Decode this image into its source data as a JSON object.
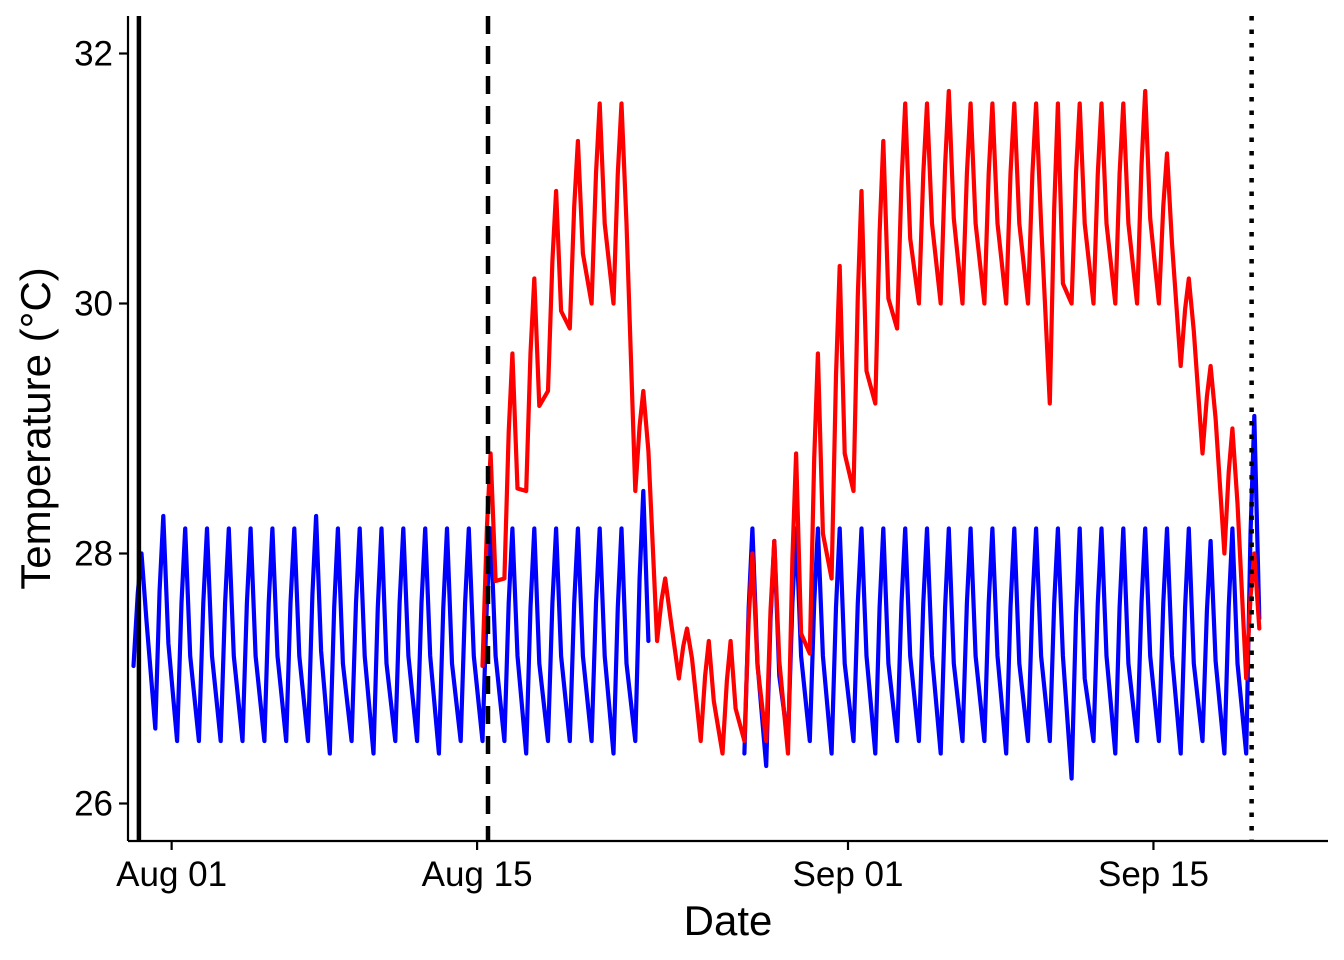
{
  "chart_data": {
    "type": "line",
    "title": "",
    "xlabel": "Date",
    "ylabel": "Temperature (°C)",
    "x_type": "datetime",
    "xlim": [
      "2021-07-30",
      "2021-09-23"
    ],
    "ylim": [
      25.7,
      32.3
    ],
    "x_ticks": [
      {
        "date": "2021-08-01",
        "label": "Aug 01"
      },
      {
        "date": "2021-08-15",
        "label": "Aug 15"
      },
      {
        "date": "2021-09-01",
        "label": "Sep 01"
      },
      {
        "date": "2021-09-15",
        "label": "Sep 15"
      }
    ],
    "y_ticks": [
      26,
      28,
      30,
      32
    ],
    "grid": false,
    "legend": "none",
    "vlines": [
      {
        "date": "2021-07-30 12:00",
        "style": "solid",
        "color": "#000000"
      },
      {
        "date": "2021-08-15 12:00",
        "style": "dashed",
        "color": "#000000"
      },
      {
        "date": "2021-09-19 12:00",
        "style": "dotted",
        "color": "#000000"
      }
    ],
    "series": [
      {
        "color": "#0000ff",
        "x": [
          "2021-07-30",
          "2021-07-31",
          "2021-08-01",
          "2021-08-02",
          "2021-08-03",
          "2021-08-04",
          "2021-08-05",
          "2021-08-06",
          "2021-08-07",
          "2021-08-08",
          "2021-08-09",
          "2021-08-10",
          "2021-08-11",
          "2021-08-12",
          "2021-08-13",
          "2021-08-14",
          "2021-08-15",
          "2021-08-16",
          "2021-08-17",
          "2021-08-18",
          "2021-08-19",
          "2021-08-20",
          "2021-08-21",
          "2021-08-22",
          "2021-08-27",
          "2021-08-28",
          "2021-08-29",
          "2021-08-30",
          "2021-08-31",
          "2021-09-01",
          "2021-09-02",
          "2021-09-03",
          "2021-09-04",
          "2021-09-05",
          "2021-09-06",
          "2021-09-07",
          "2021-09-08",
          "2021-09-09",
          "2021-09-10",
          "2021-09-11",
          "2021-09-12",
          "2021-09-13",
          "2021-09-14",
          "2021-09-15",
          "2021-09-16",
          "2021-09-17",
          "2021-09-18",
          "2021-09-19"
        ],
        "daily_min": [
          27.1,
          26.6,
          26.5,
          26.5,
          26.5,
          26.5,
          26.5,
          26.5,
          26.5,
          26.4,
          26.5,
          26.4,
          26.5,
          26.5,
          26.4,
          26.5,
          26.5,
          26.5,
          26.4,
          26.5,
          26.5,
          26.5,
          26.4,
          26.5,
          26.4,
          26.3,
          26.5,
          26.5,
          26.4,
          26.5,
          26.4,
          26.5,
          26.5,
          26.4,
          26.5,
          26.5,
          26.4,
          26.5,
          26.5,
          26.2,
          26.5,
          26.4,
          26.5,
          26.5,
          26.4,
          26.5,
          26.4,
          26.4
        ],
        "daily_max": [
          28.0,
          28.3,
          28.2,
          28.2,
          28.2,
          28.2,
          28.2,
          28.2,
          28.3,
          28.2,
          28.2,
          28.2,
          28.2,
          28.2,
          28.2,
          28.2,
          28.2,
          28.2,
          28.2,
          28.2,
          28.2,
          28.2,
          28.2,
          28.5,
          28.2,
          28.1,
          28.2,
          28.2,
          28.2,
          28.2,
          28.2,
          28.2,
          28.2,
          28.2,
          28.2,
          28.2,
          28.2,
          28.2,
          28.2,
          28.2,
          28.2,
          28.2,
          28.2,
          28.2,
          28.2,
          28.1,
          28.2,
          29.1
        ]
      },
      {
        "color": "#ff0000",
        "x": [
          "2021-08-15",
          "2021-08-16",
          "2021-08-17",
          "2021-08-18",
          "2021-08-19",
          "2021-08-20",
          "2021-08-21",
          "2021-08-22",
          "2021-08-23",
          "2021-08-24",
          "2021-08-25",
          "2021-08-26",
          "2021-08-27",
          "2021-08-28",
          "2021-08-29",
          "2021-08-30",
          "2021-08-31",
          "2021-09-01",
          "2021-09-02",
          "2021-09-03",
          "2021-09-04",
          "2021-09-05",
          "2021-09-06",
          "2021-09-07",
          "2021-09-08",
          "2021-09-09",
          "2021-09-10",
          "2021-09-11",
          "2021-09-12",
          "2021-09-13",
          "2021-09-14",
          "2021-09-15",
          "2021-09-16",
          "2021-09-17",
          "2021-09-18",
          "2021-09-19"
        ],
        "daily_min": [
          27.1,
          27.8,
          28.5,
          29.3,
          29.8,
          30.0,
          30.0,
          28.5,
          27.3,
          27.0,
          26.5,
          26.4,
          26.5,
          26.5,
          26.4,
          27.2,
          27.8,
          28.5,
          29.2,
          29.8,
          30.0,
          30.0,
          30.0,
          30.0,
          30.0,
          30.0,
          29.2,
          30.0,
          30.0,
          30.0,
          30.0,
          30.0,
          29.5,
          28.8,
          28.0,
          27.0
        ],
        "daily_max": [
          28.8,
          29.6,
          30.2,
          30.9,
          31.3,
          31.6,
          31.6,
          29.3,
          27.8,
          27.4,
          27.3,
          27.3,
          28.0,
          28.1,
          28.8,
          29.6,
          30.3,
          30.9,
          31.3,
          31.6,
          31.6,
          31.7,
          31.6,
          31.6,
          31.6,
          31.6,
          31.6,
          31.6,
          31.6,
          31.6,
          31.7,
          31.2,
          30.2,
          29.5,
          29.0,
          28.0
        ]
      }
    ]
  }
}
